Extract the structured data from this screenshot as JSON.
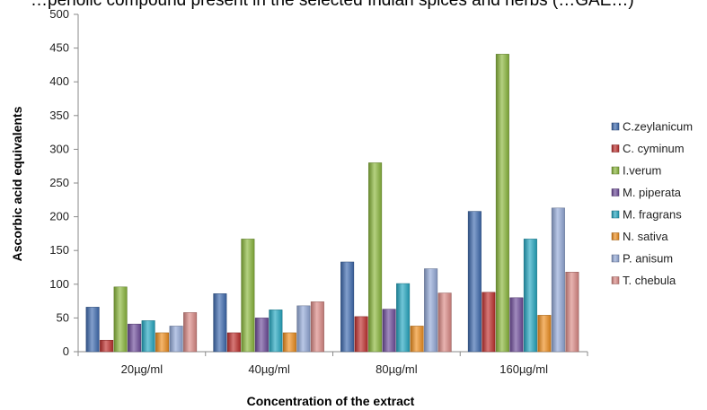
{
  "caption": "…penolic compound present in the selected Indian spices and herbs (…GAE…)",
  "chart_data": {
    "type": "bar",
    "title": "",
    "xlabel": "Concentration of the extract",
    "ylabel": "Ascorbic acid equivalents",
    "ylim": [
      0,
      500
    ],
    "yticks": [
      0,
      50,
      100,
      150,
      200,
      250,
      300,
      350,
      400,
      450,
      500
    ],
    "grid": false,
    "legend_position": "right",
    "categories": [
      "20µg/ml",
      "40µg/ml",
      "80µg/ml",
      "160µg/ml"
    ],
    "series": [
      {
        "name": "C.zeylanicum",
        "color": "#3e6bb0",
        "values": [
          66,
          86,
          133,
          208
        ]
      },
      {
        "name": "C. cyminum",
        "color": "#c0302e",
        "values": [
          17,
          28,
          52,
          88
        ]
      },
      {
        "name": "I.verum",
        "color": "#8bb83c",
        "values": [
          96,
          167,
          280,
          441
        ]
      },
      {
        "name": "M. piperata",
        "color": "#6f4c9b",
        "values": [
          41,
          50,
          63,
          80
        ]
      },
      {
        "name": "M. fragrans",
        "color": "#24a8c2",
        "values": [
          46,
          62,
          101,
          167
        ]
      },
      {
        "name": "N. sativa",
        "color": "#f08f1e",
        "values": [
          28,
          28,
          38,
          54
        ]
      },
      {
        "name": "P. anisum",
        "color": "#93a9d8",
        "values": [
          38,
          68,
          123,
          213
        ]
      },
      {
        "name": "T. chebula",
        "color": "#dc8a86",
        "values": [
          58,
          74,
          87,
          118
        ]
      }
    ]
  }
}
